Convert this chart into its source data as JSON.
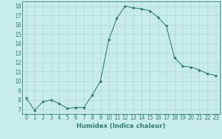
{
  "x": [
    0,
    1,
    2,
    3,
    4,
    5,
    6,
    7,
    8,
    9,
    10,
    11,
    12,
    13,
    14,
    15,
    16,
    17,
    18,
    19,
    20,
    21,
    22,
    23
  ],
  "y": [
    8.2,
    6.9,
    7.8,
    8.0,
    7.6,
    7.1,
    7.2,
    7.2,
    8.5,
    10.0,
    14.4,
    16.7,
    18.0,
    17.8,
    17.7,
    17.5,
    16.8,
    15.9,
    12.5,
    11.6,
    11.5,
    11.2,
    10.8,
    10.6
  ],
  "line_color": "#2e7d6e",
  "marker": "D",
  "marker_size": 2.0,
  "bg_color": "#c8ece8",
  "grid_color": "#b0d4d0",
  "xlabel": "Humidex (Indice chaleur)",
  "xlim": [
    -0.5,
    23.5
  ],
  "ylim": [
    6.5,
    18.5
  ],
  "yticks": [
    7,
    8,
    9,
    10,
    11,
    12,
    13,
    14,
    15,
    16,
    17,
    18
  ],
  "xticks": [
    0,
    1,
    2,
    3,
    4,
    5,
    6,
    7,
    8,
    9,
    10,
    11,
    12,
    13,
    14,
    15,
    16,
    17,
    18,
    19,
    20,
    21,
    22,
    23
  ],
  "tick_fontsize": 5.5,
  "xlabel_fontsize": 6.5
}
